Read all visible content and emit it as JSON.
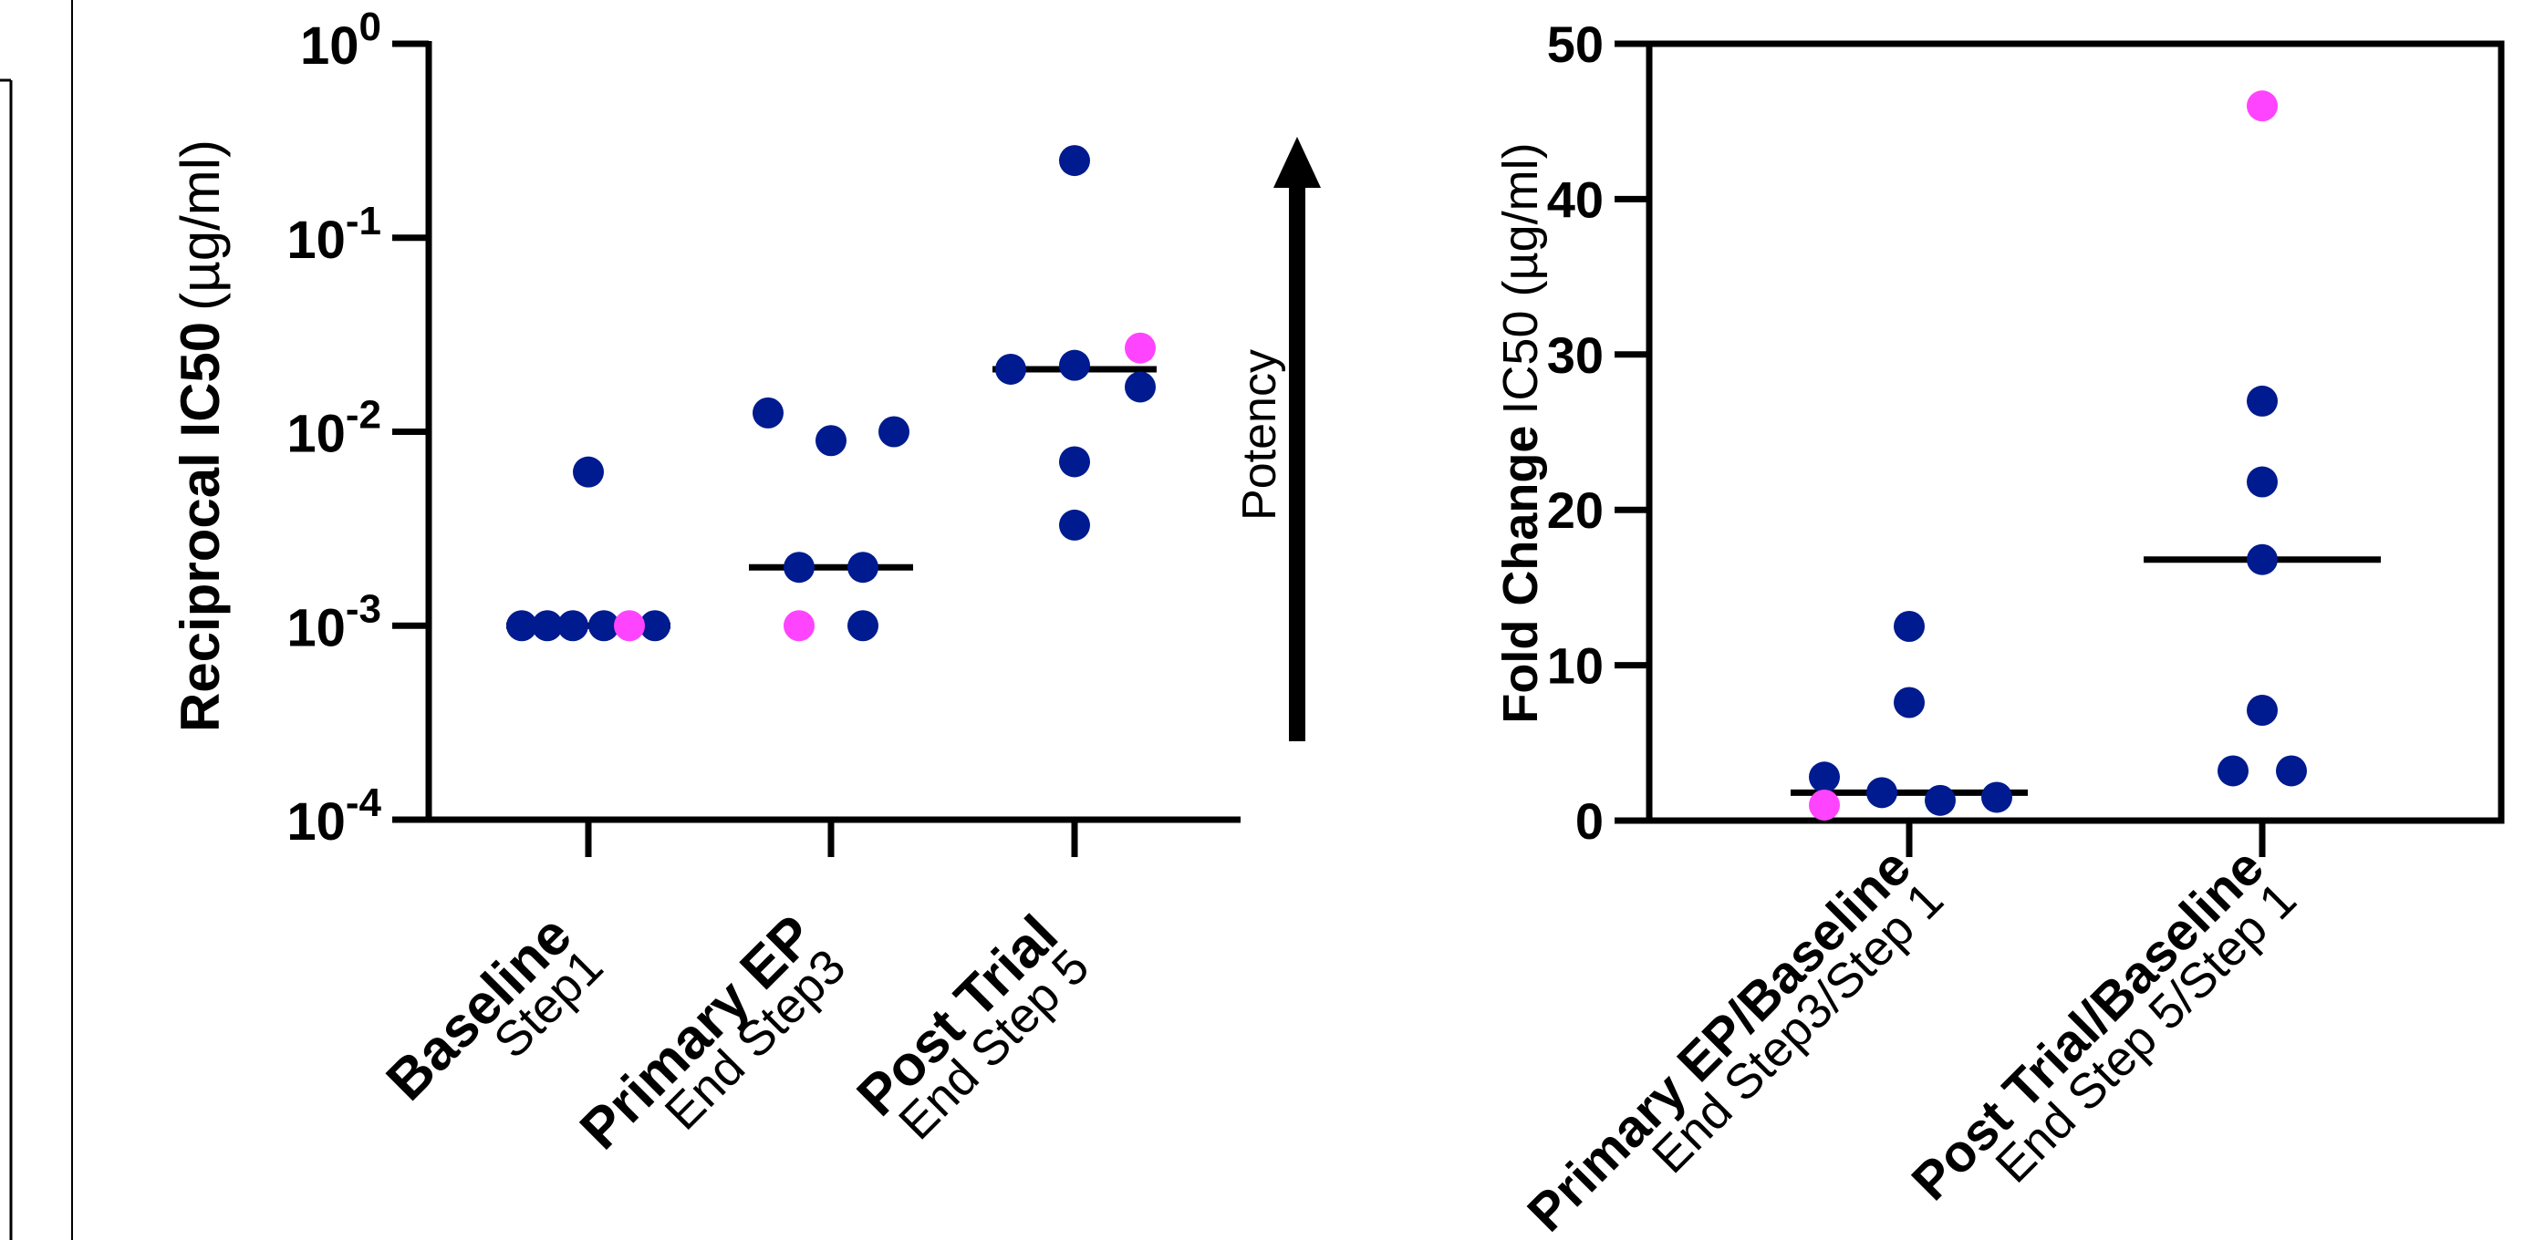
{
  "colors": {
    "navy": "#001a8f",
    "magenta": "#ff44ff",
    "axis": "#000000"
  },
  "chart_data": [
    {
      "type": "scatter",
      "scale": "log",
      "ylabel_bold": "Reciprocal IC50",
      "ylabel_unit": "(µg/ml)",
      "ylim": [
        0.0001,
        1
      ],
      "yticks": [
        {
          "value": 1,
          "base": "10",
          "exp": "0"
        },
        {
          "value": 0.1,
          "base": "10",
          "exp": "-1"
        },
        {
          "value": 0.01,
          "base": "10",
          "exp": "-2"
        },
        {
          "value": 0.001,
          "base": "10",
          "exp": "-3"
        },
        {
          "value": 0.0001,
          "base": "10",
          "exp": "-4"
        }
      ],
      "categories": [
        {
          "label": "Baseline",
          "sublabel": "Step1"
        },
        {
          "label": "Primary EP",
          "sublabel": "End Step3"
        },
        {
          "label": "Post Trial",
          "sublabel": "End Step 5"
        }
      ],
      "median": [
        0.001,
        0.002,
        0.021
      ],
      "series": [
        {
          "color_key": "navy",
          "values": [
            [
              0.001,
              0.001,
              0.001,
              0.001,
              0.001,
              0.0062
            ],
            [
              0.0125,
              0.009,
              0.01,
              0.002,
              0.002,
              0.001
            ],
            [
              0.25,
              0.021,
              0.022,
              0.017,
              0.007,
              0.0033
            ]
          ]
        },
        {
          "color_key": "magenta",
          "values": [
            [
              0.001
            ],
            [
              0.001
            ],
            [
              0.027
            ]
          ]
        }
      ],
      "annotation": {
        "text": "Potency",
        "arrow": "up"
      }
    },
    {
      "type": "scatter",
      "scale": "linear",
      "ylabel_bold": "Fold Change",
      "ylabel_unit": "IC50 (µg/ml)",
      "ylim": [
        0,
        50
      ],
      "yticks": [
        0,
        10,
        20,
        30,
        40,
        50
      ],
      "categories": [
        {
          "label": "Primary EP/Baseline",
          "sublabel": "End Step3/Step 1"
        },
        {
          "label": "Post Trial/Baseline",
          "sublabel": "End Step 5/Step 1"
        }
      ],
      "median": [
        1.8,
        16.8
      ],
      "series": [
        {
          "color_key": "navy",
          "values": [
            [
              12.5,
              7.6,
              2.8,
              1.8,
              1.3,
              1.5
            ],
            [
              27,
              21.8,
              16.8,
              7.1,
              3.2,
              3.2
            ]
          ]
        },
        {
          "color_key": "magenta",
          "values": [
            [
              1.0
            ],
            [
              46
            ]
          ]
        }
      ]
    }
  ]
}
